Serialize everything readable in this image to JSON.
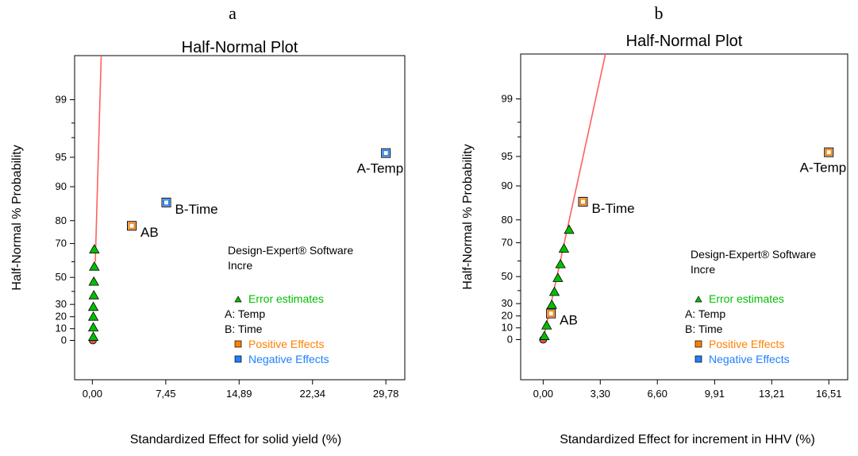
{
  "chart_data": [
    {
      "type": "scatter",
      "panel_label": "a",
      "title": "Half-Normal Plot",
      "xlabel": "Standardized Effect for solid yield (%)",
      "ylabel": "Half-Normal % Probability",
      "x_ticks": [
        "0,00",
        "7,45",
        "14,89",
        "22,34",
        "29,78"
      ],
      "y_ticks": [
        "0",
        "10",
        "20",
        "30",
        "50",
        "70",
        "80",
        "90",
        "95",
        "99"
      ],
      "xlim": [
        -1.8,
        31.7
      ],
      "software_note": [
        "Design-Expert® Software",
        "Incre"
      ],
      "legend": [
        {
          "marker": "triangle",
          "color": "#00c000",
          "text": "Error estimates"
        },
        {
          "marker": "none",
          "color": "#000000",
          "text": "A: Temp"
        },
        {
          "marker": "none",
          "color": "#000000",
          "text": "B: Time"
        },
        {
          "marker": "square",
          "color": "#ff8000",
          "text": "Positive Effects"
        },
        {
          "marker": "square",
          "color": "#2080ff",
          "text": "Negative Effects"
        }
      ],
      "line": {
        "color": "#ff6060",
        "x": [
          0.3,
          0.9
        ],
        "y": [
          60,
          100
        ]
      },
      "points": [
        {
          "x": 0.05,
          "y": 0,
          "kind": "origin",
          "label": ""
        },
        {
          "x": 0.1,
          "y": 3,
          "kind": "error",
          "label": ""
        },
        {
          "x": 0.1,
          "y": 11,
          "kind": "error",
          "label": ""
        },
        {
          "x": 0.1,
          "y": 20,
          "kind": "error",
          "label": ""
        },
        {
          "x": 0.1,
          "y": 28,
          "kind": "error",
          "label": ""
        },
        {
          "x": 0.15,
          "y": 37,
          "kind": "error",
          "label": ""
        },
        {
          "x": 0.15,
          "y": 47,
          "kind": "error",
          "label": ""
        },
        {
          "x": 0.2,
          "y": 57,
          "kind": "error",
          "label": ""
        },
        {
          "x": 0.2,
          "y": 67,
          "kind": "error",
          "label": ""
        },
        {
          "x": 4.0,
          "y": 78,
          "kind": "positive",
          "label": "AB"
        },
        {
          "x": 7.5,
          "y": 86,
          "kind": "negative",
          "label": "B-Time"
        },
        {
          "x": 29.78,
          "y": 95.5,
          "kind": "negative",
          "label": "A-Temp"
        }
      ]
    },
    {
      "type": "scatter",
      "panel_label": "b",
      "title": "Half-Normal Plot",
      "xlabel": "Standardized Effect for increment in HHV (%)",
      "ylabel": "Half-Normal % Probability",
      "x_ticks": [
        "0,00",
        "3,30",
        "6,60",
        "9,91",
        "13,21",
        "16,51"
      ],
      "y_ticks": [
        "0",
        "10",
        "20",
        "30",
        "50",
        "70",
        "80",
        "90",
        "95",
        "99"
      ],
      "xlim": [
        -1.3,
        17.6
      ],
      "software_note": [
        "Design-Expert® Software",
        "Incre"
      ],
      "legend": [
        {
          "marker": "triangle",
          "color": "#00c000",
          "text": "Error estimates"
        },
        {
          "marker": "none",
          "color": "#000000",
          "text": "A: Temp"
        },
        {
          "marker": "none",
          "color": "#000000",
          "text": "B: Time"
        },
        {
          "marker": "square",
          "color": "#ff8000",
          "text": "Positive Effects"
        },
        {
          "marker": "square",
          "color": "#2080ff",
          "text": "Negative Effects"
        }
      ],
      "line": {
        "color": "#ff6060",
        "x": [
          0.0,
          3.6
        ],
        "y": [
          0,
          100
        ]
      },
      "points": [
        {
          "x": 0.0,
          "y": 0,
          "kind": "origin",
          "label": ""
        },
        {
          "x": 0.07,
          "y": 3,
          "kind": "error",
          "label": ""
        },
        {
          "x": 0.2,
          "y": 12,
          "kind": "error",
          "label": ""
        },
        {
          "x": 0.5,
          "y": 29,
          "kind": "error",
          "label": ""
        },
        {
          "x": 0.65,
          "y": 39,
          "kind": "error",
          "label": ""
        },
        {
          "x": 0.85,
          "y": 49,
          "kind": "error",
          "label": ""
        },
        {
          "x": 1.0,
          "y": 58,
          "kind": "error",
          "label": ""
        },
        {
          "x": 1.2,
          "y": 67,
          "kind": "error",
          "label": ""
        },
        {
          "x": 1.5,
          "y": 76,
          "kind": "error",
          "label": ""
        },
        {
          "x": 0.45,
          "y": 22,
          "kind": "positive",
          "label": "AB"
        },
        {
          "x": 2.3,
          "y": 86,
          "kind": "positive",
          "label": "B-Time"
        },
        {
          "x": 16.51,
          "y": 95.5,
          "kind": "positive",
          "label": "A-Temp"
        }
      ]
    }
  ]
}
